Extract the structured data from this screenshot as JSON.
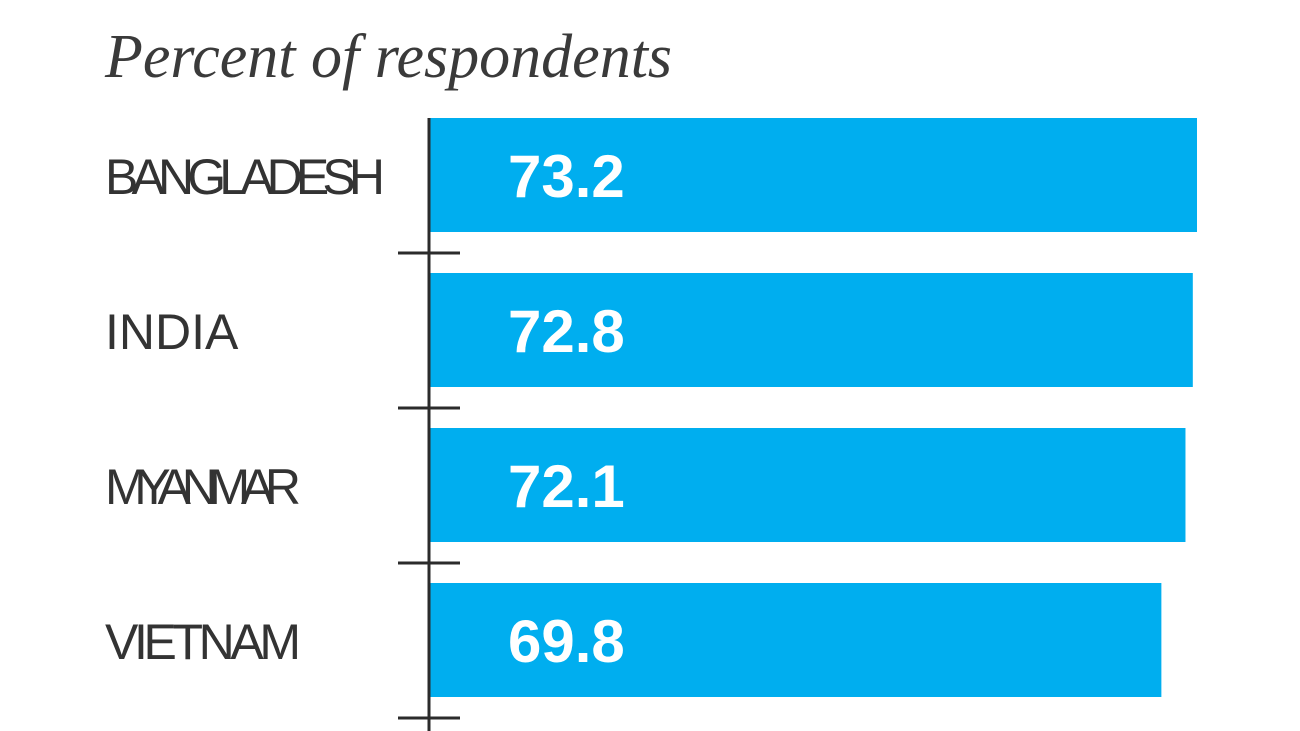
{
  "header": {
    "subtitle": "Percent of respondents"
  },
  "colors": {
    "bar": "#00aeef",
    "axis": "#2b2b2b",
    "text": "#333333",
    "value_text": "#ffffff"
  },
  "chart_data": {
    "type": "bar",
    "orientation": "horizontal",
    "title": "",
    "subtitle": "Percent of respondents",
    "xlabel": "",
    "ylabel": "",
    "categories": [
      "BANGLADESH",
      "INDIA",
      "MYANMAR",
      "VIETNAM"
    ],
    "values": [
      73.2,
      72.8,
      72.1,
      69.8
    ],
    "value_labels": [
      "73.2",
      "72.8",
      "72.1",
      "69.8"
    ],
    "xlim": [
      0,
      73.2
    ],
    "grid": false,
    "legend": "none"
  }
}
